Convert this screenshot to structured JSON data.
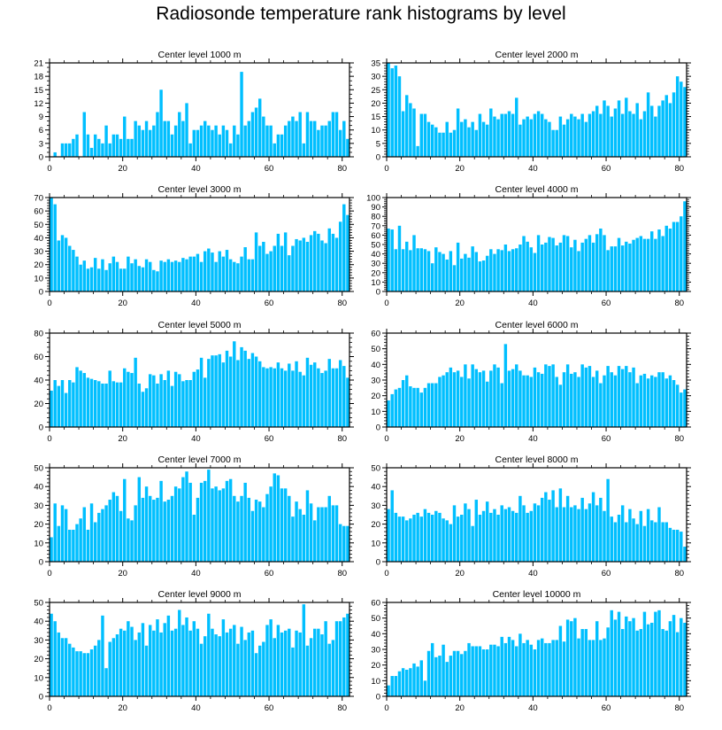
{
  "title": "Radiosonde temperature rank histograms by level",
  "bar_color": "#00BFFF",
  "chart_data": [
    {
      "type": "bar",
      "title": "Center level 1000 m",
      "xlim": [
        0,
        82
      ],
      "ylim": [
        0,
        21
      ],
      "yticks": [
        0,
        3,
        6,
        9,
        12,
        15,
        18,
        21
      ],
      "xticks": [
        0,
        20,
        40,
        60,
        80
      ],
      "values": [
        0,
        1,
        0,
        3,
        3,
        3,
        4,
        5,
        0,
        10,
        5,
        2,
        5,
        4,
        3,
        7,
        3,
        5,
        5,
        4,
        9,
        4,
        4,
        8,
        7,
        6,
        8,
        6,
        7,
        10,
        15,
        8,
        8,
        5,
        7,
        10,
        8,
        12,
        3,
        6,
        6,
        7,
        8,
        7,
        6,
        7,
        5,
        7,
        6,
        3,
        7,
        5,
        19,
        7,
        8,
        10,
        11,
        13,
        9,
        7,
        7,
        3,
        5,
        5,
        7,
        8,
        9,
        8,
        10,
        3,
        10,
        8,
        8,
        6,
        7,
        7,
        8,
        10,
        10,
        6,
        8,
        4
      ]
    },
    {
      "type": "bar",
      "title": "Center level 2000 m",
      "xlim": [
        0,
        82
      ],
      "ylim": [
        0,
        35
      ],
      "yticks": [
        0,
        5,
        10,
        15,
        20,
        25,
        30,
        35
      ],
      "xticks": [
        0,
        20,
        40,
        60,
        80
      ],
      "values": [
        35,
        33,
        34,
        30,
        17,
        23,
        20,
        18,
        4,
        16,
        16,
        13,
        12,
        11,
        9,
        9,
        13,
        9,
        10,
        18,
        13,
        14,
        11,
        13,
        10,
        16,
        13,
        12,
        18,
        15,
        14,
        16,
        16,
        17,
        16,
        22,
        12,
        14,
        15,
        14,
        16,
        17,
        16,
        14,
        13,
        10,
        10,
        15,
        12,
        14,
        16,
        15,
        14,
        16,
        13,
        16,
        17,
        19,
        16,
        21,
        19,
        15,
        18,
        21,
        16,
        22,
        17,
        16,
        20,
        14,
        17,
        24,
        19,
        15,
        19,
        21,
        23,
        20,
        24,
        30,
        28,
        26
      ]
    },
    {
      "type": "bar",
      "title": "Center level 3000 m",
      "xlim": [
        0,
        82
      ],
      "ylim": [
        0,
        70
      ],
      "yticks": [
        0,
        10,
        20,
        30,
        40,
        50,
        60,
        70
      ],
      "xticks": [
        0,
        20,
        40,
        60,
        80
      ],
      "values": [
        70,
        65,
        38,
        42,
        40,
        34,
        31,
        26,
        20,
        23,
        17,
        18,
        25,
        17,
        24,
        16,
        21,
        26,
        22,
        17,
        17,
        26,
        21,
        24,
        19,
        18,
        24,
        22,
        16,
        15,
        23,
        22,
        24,
        22,
        23,
        22,
        25,
        24,
        26,
        26,
        28,
        22,
        30,
        32,
        29,
        22,
        30,
        26,
        31,
        24,
        22,
        21,
        26,
        33,
        24,
        24,
        44,
        34,
        37,
        28,
        30,
        34,
        43,
        34,
        44,
        27,
        34,
        39,
        38,
        40,
        37,
        42,
        45,
        43,
        38,
        36,
        47,
        43,
        40,
        52,
        65,
        57
      ]
    },
    {
      "type": "bar",
      "title": "Center level 4000 m",
      "xlim": [
        0,
        82
      ],
      "ylim": [
        0,
        100
      ],
      "yticks": [
        0,
        10,
        20,
        30,
        40,
        50,
        60,
        70,
        80,
        90,
        100
      ],
      "xticks": [
        0,
        20,
        40,
        60,
        80
      ],
      "values": [
        67,
        66,
        45,
        70,
        45,
        53,
        44,
        60,
        46,
        46,
        45,
        43,
        30,
        47,
        42,
        40,
        34,
        43,
        28,
        52,
        35,
        40,
        36,
        48,
        42,
        32,
        33,
        38,
        45,
        40,
        45,
        44,
        50,
        43,
        45,
        46,
        50,
        59,
        53,
        47,
        41,
        60,
        50,
        52,
        58,
        57,
        49,
        52,
        60,
        59,
        47,
        55,
        43,
        52,
        56,
        60,
        52,
        61,
        67,
        60,
        44,
        48,
        48,
        57,
        49,
        53,
        51,
        55,
        57,
        59,
        56,
        56,
        64,
        56,
        66,
        59,
        70,
        67,
        74,
        74,
        80,
        96
      ]
    },
    {
      "type": "bar",
      "title": "Center level 5000 m",
      "xlim": [
        0,
        82
      ],
      "ylim": [
        0,
        80
      ],
      "yticks": [
        0,
        20,
        40,
        60,
        80
      ],
      "xticks": [
        0,
        20,
        40,
        60,
        80
      ],
      "values": [
        31,
        40,
        35,
        40,
        29,
        40,
        38,
        51,
        48,
        46,
        42,
        41,
        40,
        39,
        37,
        37,
        48,
        39,
        38,
        38,
        50,
        47,
        46,
        59,
        37,
        30,
        33,
        45,
        44,
        37,
        45,
        40,
        48,
        35,
        47,
        45,
        39,
        40,
        40,
        47,
        49,
        59,
        42,
        58,
        61,
        61,
        62,
        55,
        65,
        60,
        73,
        57,
        68,
        65,
        58,
        63,
        60,
        56,
        51,
        50,
        51,
        50,
        55,
        50,
        48,
        54,
        48,
        56,
        47,
        44,
        59,
        53,
        55,
        50,
        46,
        48,
        58,
        50,
        50,
        57,
        52,
        42
      ]
    },
    {
      "type": "bar",
      "title": "Center level 6000 m",
      "xlim": [
        0,
        82
      ],
      "ylim": [
        0,
        60
      ],
      "yticks": [
        0,
        10,
        20,
        30,
        40,
        50,
        60
      ],
      "xticks": [
        0,
        20,
        40,
        60,
        80
      ],
      "values": [
        17,
        21,
        24,
        25,
        30,
        33,
        26,
        25,
        25,
        22,
        25,
        28,
        28,
        28,
        32,
        33,
        35,
        38,
        35,
        36,
        32,
        40,
        31,
        40,
        37,
        35,
        36,
        29,
        36,
        40,
        38,
        28,
        53,
        36,
        37,
        40,
        36,
        33,
        33,
        32,
        38,
        35,
        34,
        40,
        39,
        40,
        32,
        27,
        35,
        40,
        34,
        35,
        32,
        40,
        38,
        39,
        32,
        36,
        28,
        33,
        39,
        35,
        33,
        39,
        37,
        39,
        35,
        38,
        28,
        33,
        34,
        31,
        33,
        32,
        35,
        35,
        31,
        33,
        30,
        27,
        22,
        24
      ]
    },
    {
      "type": "bar",
      "title": "Center level 7000 m",
      "xlim": [
        0,
        82
      ],
      "ylim": [
        0,
        50
      ],
      "yticks": [
        0,
        10,
        20,
        30,
        40,
        50
      ],
      "xticks": [
        0,
        20,
        40,
        60,
        80
      ],
      "values": [
        13,
        31,
        19,
        30,
        28,
        17,
        17,
        20,
        23,
        29,
        17,
        31,
        21,
        26,
        28,
        30,
        33,
        37,
        35,
        27,
        44,
        23,
        22,
        30,
        45,
        34,
        40,
        35,
        33,
        34,
        43,
        32,
        33,
        35,
        40,
        39,
        45,
        48,
        42,
        25,
        34,
        42,
        43,
        49,
        39,
        40,
        38,
        39,
        43,
        44,
        35,
        32,
        35,
        42,
        34,
        27,
        33,
        32,
        29,
        36,
        40,
        47,
        46,
        39,
        39,
        35,
        24,
        32,
        28,
        25,
        38,
        31,
        22,
        29,
        29,
        29,
        35,
        30,
        30,
        20,
        19,
        19
      ]
    },
    {
      "type": "bar",
      "title": "Center level 8000 m",
      "xlim": [
        0,
        82
      ],
      "ylim": [
        0,
        50
      ],
      "yticks": [
        0,
        10,
        20,
        30,
        40,
        50
      ],
      "xticks": [
        0,
        20,
        40,
        60,
        80
      ],
      "values": [
        28,
        38,
        26,
        24,
        24,
        22,
        23,
        25,
        26,
        24,
        28,
        26,
        25,
        27,
        26,
        23,
        22,
        20,
        30,
        24,
        25,
        31,
        28,
        19,
        33,
        25,
        27,
        32,
        26,
        28,
        25,
        30,
        28,
        29,
        27,
        26,
        35,
        30,
        26,
        27,
        31,
        30,
        34,
        37,
        33,
        38,
        29,
        39,
        29,
        35,
        29,
        30,
        28,
        34,
        28,
        31,
        37,
        30,
        34,
        27,
        44,
        24,
        21,
        25,
        30,
        21,
        28,
        23,
        20,
        27,
        19,
        28,
        22,
        21,
        29,
        21,
        21,
        18,
        17,
        17,
        16,
        8
      ]
    },
    {
      "type": "bar",
      "title": "Center level 9000 m",
      "xlim": [
        0,
        82
      ],
      "ylim": [
        0,
        50
      ],
      "yticks": [
        0,
        10,
        20,
        30,
        40,
        50
      ],
      "xticks": [
        0,
        20,
        40,
        60,
        80
      ],
      "values": [
        44,
        40,
        34,
        31,
        31,
        28,
        26,
        24,
        24,
        23,
        23,
        25,
        27,
        30,
        43,
        15,
        29,
        31,
        33,
        36,
        35,
        40,
        37,
        30,
        34,
        39,
        27,
        38,
        35,
        41,
        34,
        39,
        43,
        35,
        36,
        46,
        38,
        42,
        35,
        40,
        36,
        28,
        32,
        44,
        36,
        33,
        32,
        41,
        34,
        36,
        38,
        28,
        37,
        30,
        34,
        35,
        23,
        27,
        29,
        38,
        41,
        31,
        38,
        34,
        35,
        36,
        26,
        35,
        34,
        49,
        27,
        31,
        36,
        36,
        33,
        40,
        28,
        30,
        40,
        40,
        42,
        44
      ]
    },
    {
      "type": "bar",
      "title": "Center level 10000 m",
      "xlim": [
        0,
        82
      ],
      "ylim": [
        0,
        60
      ],
      "yticks": [
        0,
        10,
        20,
        30,
        40,
        50,
        60
      ],
      "xticks": [
        0,
        20,
        40,
        60,
        80
      ],
      "values": [
        7,
        13,
        13,
        16,
        18,
        17,
        18,
        21,
        19,
        23,
        10,
        29,
        34,
        25,
        26,
        33,
        22,
        26,
        29,
        29,
        27,
        29,
        34,
        32,
        32,
        32,
        30,
        30,
        33,
        33,
        32,
        38,
        34,
        38,
        36,
        32,
        40,
        34,
        36,
        33,
        30,
        36,
        37,
        34,
        34,
        36,
        36,
        45,
        35,
        49,
        48,
        50,
        37,
        43,
        43,
        36,
        36,
        48,
        36,
        37,
        44,
        55,
        49,
        54,
        43,
        51,
        48,
        50,
        42,
        43,
        54,
        46,
        47,
        54,
        55,
        43,
        42,
        48,
        52,
        41,
        50,
        47
      ]
    }
  ]
}
